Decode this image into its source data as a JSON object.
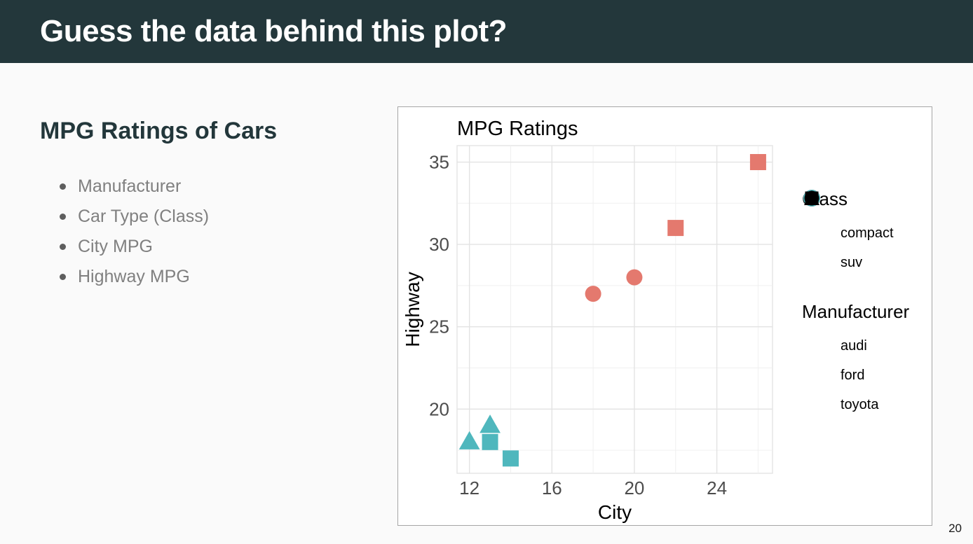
{
  "slide": {
    "header": {
      "title": "Guess the data behind this plot?",
      "bg_color": "#23373B",
      "text_color": "#FFFFFF"
    },
    "body_heading": "MPG Ratings of Cars",
    "bullets": [
      "Manufacturer",
      "Car Type (Class)",
      "City MPG",
      "Highway MPG"
    ],
    "page_number": "20"
  },
  "chart_data": {
    "type": "scatter",
    "title": "MPG Ratings",
    "xlabel": "City",
    "ylabel": "Highway",
    "xlim": [
      11.4,
      26.7
    ],
    "ylim": [
      16.1,
      36.0
    ],
    "x_ticks": [
      12,
      16,
      20,
      24
    ],
    "y_ticks": [
      20,
      25,
      30,
      35
    ],
    "x_minor_gridlines": [
      14,
      18,
      22,
      26
    ],
    "y_minor_gridlines": [
      17.5,
      22.5,
      27.5,
      32.5
    ],
    "grid": true,
    "legend_position": "right",
    "colors": {
      "compact": "#E4796E",
      "suv": "#4FB7BD",
      "major_grid": "#E3E3E3",
      "minor_grid": "#F0F0F0",
      "tick_label": "#4D4D4D",
      "axis_title": "#000000"
    },
    "series": [
      {
        "name": "audi-compact",
        "class": "compact",
        "manufacturer": "audi",
        "shape": "circle",
        "color": "#E4796E",
        "points": [
          {
            "x": 18,
            "y": 27
          },
          {
            "x": 20,
            "y": 28
          }
        ]
      },
      {
        "name": "toyota-compact",
        "class": "compact",
        "manufacturer": "toyota",
        "shape": "square",
        "color": "#E4796E",
        "points": [
          {
            "x": 22,
            "y": 31
          },
          {
            "x": 26,
            "y": 35
          }
        ]
      },
      {
        "name": "ford-suv",
        "class": "suv",
        "manufacturer": "ford",
        "shape": "triangle",
        "color": "#4FB7BD",
        "points": [
          {
            "x": 12,
            "y": 18
          },
          {
            "x": 13,
            "y": 19
          }
        ]
      },
      {
        "name": "toyota-suv",
        "class": "suv",
        "manufacturer": "toyota",
        "shape": "square",
        "color": "#4FB7BD",
        "points": [
          {
            "x": 13,
            "y": 18
          },
          {
            "x": 14,
            "y": 17
          }
        ]
      }
    ],
    "legends": [
      {
        "title": "Class",
        "items": [
          {
            "label": "compact",
            "shape": "circle",
            "color": "#E4796E"
          },
          {
            "label": "suv",
            "shape": "circle",
            "color": "#4FB7BD"
          }
        ]
      },
      {
        "title": "Manufacturer",
        "items": [
          {
            "label": "audi",
            "shape": "circle",
            "color": "#000000"
          },
          {
            "label": "ford",
            "shape": "triangle",
            "color": "#000000"
          },
          {
            "label": "toyota",
            "shape": "square",
            "color": "#000000"
          }
        ]
      }
    ]
  }
}
